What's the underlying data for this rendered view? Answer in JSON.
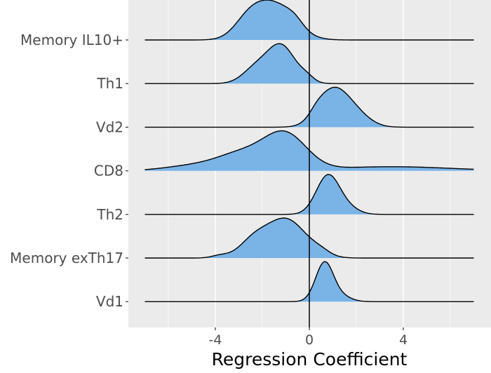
{
  "chart_data": {
    "type": "ridgeline",
    "title": "",
    "xlabel": "Regression Coefficient",
    "ylabel": "",
    "xlim": [
      -7.5,
      7.5
    ],
    "x_ticks": [
      -4,
      0,
      4
    ],
    "x_tick_labels": [
      "-4",
      "0",
      "4"
    ],
    "grid": true,
    "reference_line_x": 0,
    "density_range": [
      -7,
      7
    ],
    "colors": {
      "panel_background": "#ebebeb",
      "grid": "#ffffff",
      "fill": "#7ab3e6",
      "line": "#000000",
      "tick_text": "#4d4d4d"
    },
    "series": [
      {
        "name": "Memory IL10+",
        "components": [
          [
            -1.5,
            0.85,
            0.8
          ],
          [
            -2.6,
            0.6,
            0.35
          ],
          [
            -0.6,
            0.35,
            0.12
          ]
        ]
      },
      {
        "name": "Th1",
        "components": [
          [
            -1.2,
            0.6,
            0.8
          ],
          [
            -2.3,
            0.55,
            0.3
          ],
          [
            -0.1,
            0.3,
            0.1
          ]
        ]
      },
      {
        "name": "Vd2",
        "components": [
          [
            1.0,
            0.65,
            0.82
          ],
          [
            2.0,
            0.6,
            0.25
          ],
          [
            0.3,
            0.3,
            0.1
          ]
        ]
      },
      {
        "name": "CD8",
        "components": [
          [
            -1.0,
            0.9,
            0.5
          ],
          [
            -2.8,
            1.1,
            0.25
          ],
          [
            -5.0,
            1.2,
            0.07
          ],
          [
            3.5,
            2.5,
            0.06
          ]
        ]
      },
      {
        "name": "Th2",
        "components": [
          [
            0.8,
            0.5,
            0.95
          ],
          [
            1.7,
            0.45,
            0.12
          ]
        ]
      },
      {
        "name": "Memory exTh17",
        "components": [
          [
            -1.0,
            0.85,
            0.8
          ],
          [
            -2.4,
            0.6,
            0.3
          ],
          [
            -3.8,
            0.35,
            0.05
          ],
          [
            0.5,
            0.4,
            0.08
          ]
        ]
      },
      {
        "name": "Vd1",
        "components": [
          [
            0.65,
            0.38,
            1.0
          ],
          [
            1.4,
            0.4,
            0.12
          ]
        ]
      }
    ]
  }
}
